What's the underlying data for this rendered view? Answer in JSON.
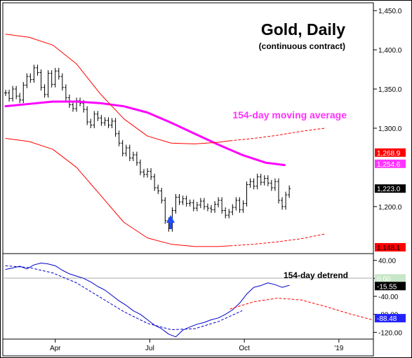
{
  "chart_data": [
    {
      "type": "line",
      "title": "Gold, Daily",
      "subtitle": "(continuous contract)",
      "x_axis_ticks": [
        "Apr",
        "Jul",
        "Oct",
        "'19"
      ],
      "y_axis_ticks": [
        "1,450.0",
        "1,400.0",
        "1,350.0",
        "1,300.0",
        "1,200.0"
      ],
      "ylim": [
        1140,
        1460
      ],
      "annotations": {
        "moving_average_label": "154-day moving average",
        "low_marker": "up-arrow-icon"
      },
      "value_badges": [
        {
          "text": "1,268.9",
          "value": 1268.9,
          "bg": "#ff0000",
          "fg": "#ffffff"
        },
        {
          "text": "1,254.6",
          "value": 1254.6,
          "bg": "#ff33ff",
          "fg": "#ffffff"
        },
        {
          "text": "1,223.0",
          "value": 1223.0,
          "bg": "#000000",
          "fg": "#ffffff"
        },
        {
          "text": "1,148.1",
          "value": 1148.1,
          "bg": "#ff0000",
          "fg": "#000000"
        }
      ],
      "series": [
        {
          "name": "Gold",
          "style": "ohlc-bars",
          "color": "#000000",
          "x": [
            0,
            3,
            6,
            9,
            12,
            15,
            18,
            21,
            24,
            27,
            30,
            33,
            36,
            39,
            42,
            45,
            48,
            51,
            54,
            57,
            60,
            63,
            66,
            69,
            72,
            75,
            78,
            81,
            84,
            87,
            90,
            93,
            96,
            99,
            102,
            105,
            108,
            111,
            114,
            117,
            120,
            123,
            126,
            129,
            132,
            135,
            138,
            141,
            144,
            147,
            150,
            153,
            156,
            159,
            162,
            165,
            168,
            171,
            174,
            177,
            180,
            183,
            186,
            189,
            192,
            195,
            198,
            201,
            204,
            207,
            210,
            213,
            216,
            219,
            222,
            225,
            228,
            231,
            234,
            237,
            240
          ],
          "values": [
            1345,
            1338,
            1350,
            1341,
            1336,
            1355,
            1366,
            1362,
            1377,
            1371,
            1352,
            1343,
            1370,
            1356,
            1373,
            1366,
            1352,
            1339,
            1330,
            1325,
            1335,
            1332,
            1324,
            1308,
            1304,
            1318,
            1313,
            1307,
            1310,
            1304,
            1309,
            1293,
            1281,
            1268,
            1275,
            1262,
            1266,
            1256,
            1244,
            1241,
            1245,
            1238,
            1224,
            1220,
            1208,
            1182,
            1172,
            1195,
            1212,
            1206,
            1210,
            1204,
            1205,
            1198,
            1202,
            1207,
            1200,
            1198,
            1196,
            1203,
            1208,
            1195,
            1189,
            1193,
            1199,
            1208,
            1196,
            1204,
            1228,
            1232,
            1226,
            1238,
            1231,
            1236,
            1230,
            1224,
            1232,
            1208,
            1200,
            1215,
            1223
          ]
        },
        {
          "name": "154-day moving average",
          "style": "line",
          "color": "#ff00ff",
          "x": [
            0,
            20,
            40,
            60,
            80,
            100,
            120,
            140,
            160,
            180,
            200,
            220,
            236
          ],
          "values": [
            1328,
            1331,
            1334,
            1334,
            1332,
            1328,
            1320,
            1307,
            1293,
            1279,
            1266,
            1256,
            1253
          ]
        },
        {
          "name": "upper band",
          "style": "line",
          "color": "#ff0000",
          "x": [
            0,
            20,
            40,
            60,
            80,
            100,
            120,
            140,
            160,
            170,
            180,
            190
          ],
          "values": [
            1420,
            1416,
            1406,
            1382,
            1344,
            1312,
            1290,
            1281,
            1280,
            1281,
            1282,
            1284
          ]
        },
        {
          "name": "upper band projection",
          "style": "dashed",
          "color": "#ff0000",
          "x": [
            190,
            210,
            230,
            250,
            270
          ],
          "values": [
            1284,
            1287,
            1291,
            1296,
            1300
          ]
        },
        {
          "name": "lower band",
          "style": "line",
          "color": "#ff0000",
          "x": [
            0,
            20,
            40,
            60,
            80,
            100,
            120,
            140,
            160,
            180,
            190
          ],
          "values": [
            1287,
            1283,
            1273,
            1250,
            1215,
            1180,
            1160,
            1152,
            1149,
            1149,
            1150
          ]
        },
        {
          "name": "lower band projection",
          "style": "dashed",
          "color": "#ff0000",
          "x": [
            190,
            210,
            230,
            250,
            270
          ],
          "values": [
            1150,
            1152,
            1155,
            1159,
            1165
          ]
        }
      ]
    },
    {
      "type": "line",
      "title": "154-day detrend",
      "x_axis_ticks": [
        "Apr",
        "Jul",
        "Oct",
        "'19"
      ],
      "y_axis_ticks": [
        "40.00",
        "0.00",
        "-40.00",
        "-80.00",
        "-120.00"
      ],
      "ylim": [
        -135,
        55
      ],
      "value_badges": [
        {
          "text": "0.00",
          "value": 0,
          "bg": "#c8e6c8",
          "fg": "#ffffff"
        },
        {
          "text": "-15.55",
          "value": -15.55,
          "bg": "#000000",
          "fg": "#ffffff"
        },
        {
          "text": "-88.48",
          "value": -88.48,
          "bg": "#2222ff",
          "fg": "#ffffff"
        }
      ],
      "series": [
        {
          "name": "154-day detrend",
          "style": "line",
          "color": "#0000cc",
          "x": [
            0,
            6,
            12,
            18,
            24,
            30,
            36,
            42,
            48,
            54,
            60,
            66,
            72,
            78,
            84,
            90,
            96,
            102,
            108,
            114,
            120,
            126,
            132,
            138,
            144,
            150,
            156,
            162,
            168,
            174,
            180,
            186,
            192,
            198,
            204,
            210,
            216,
            222,
            228,
            234,
            240
          ],
          "values": [
            20,
            23,
            27,
            21,
            30,
            34,
            32,
            28,
            18,
            10,
            5,
            0,
            -8,
            -18,
            -26,
            -38,
            -50,
            -60,
            -72,
            -80,
            -92,
            -104,
            -112,
            -124,
            -130,
            -115,
            -108,
            -102,
            -98,
            -92,
            -88,
            -80,
            -70,
            -55,
            -35,
            -20,
            -16,
            -10,
            -14,
            -20,
            -15.55
          ]
        },
        {
          "name": "detrend trend",
          "style": "dashed",
          "color": "#0000cc",
          "x": [
            0,
            20,
            40,
            60,
            80,
            100,
            120,
            140,
            160,
            180,
            200
          ],
          "values": [
            28,
            24,
            12,
            -10,
            -42,
            -74,
            -100,
            -114,
            -112,
            -96,
            -72
          ]
        },
        {
          "name": "detrend projection",
          "style": "dashed",
          "color": "#ff0000",
          "x": [
            190,
            210,
            230,
            250,
            270,
            290,
            310
          ],
          "values": [
            -68,
            -52,
            -44,
            -48,
            -62,
            -78,
            -92
          ]
        }
      ]
    }
  ]
}
